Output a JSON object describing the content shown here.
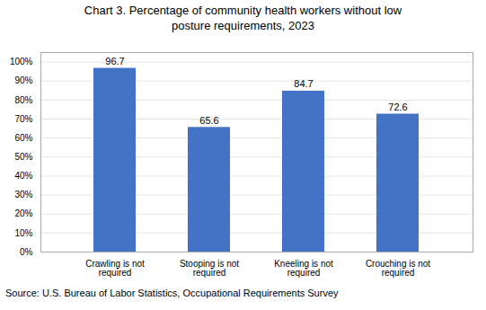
{
  "chart_data": {
    "type": "bar",
    "title": "Chart 3. Percentage of community health workers without low\nposture requirements, 2023",
    "categories": [
      "Crawling is not\nrequired",
      "Stooping is not\nrequired",
      "Kneeling is not\nrequired",
      "Crouching is not\nrequired"
    ],
    "values": [
      96.7,
      65.6,
      84.7,
      72.6
    ],
    "color": "#4472C4",
    "ylim": [
      0,
      105
    ],
    "yticks": [
      {
        "value": 0,
        "label": "0%"
      },
      {
        "value": 10,
        "label": "10%"
      },
      {
        "value": 20,
        "label": "20%"
      },
      {
        "value": 30,
        "label": "30%"
      },
      {
        "value": 40,
        "label": "40%"
      },
      {
        "value": 50,
        "label": "50%"
      },
      {
        "value": 60,
        "label": "60%"
      },
      {
        "value": 70,
        "label": "70%"
      },
      {
        "value": 80,
        "label": "80%"
      },
      {
        "value": 90,
        "label": "90%"
      },
      {
        "value": 100,
        "label": "100%"
      }
    ],
    "grid": true,
    "data_labels": true,
    "caption": "Source: U.S. Bureau of Labor Statistics, Occupational Requirements Survey"
  }
}
